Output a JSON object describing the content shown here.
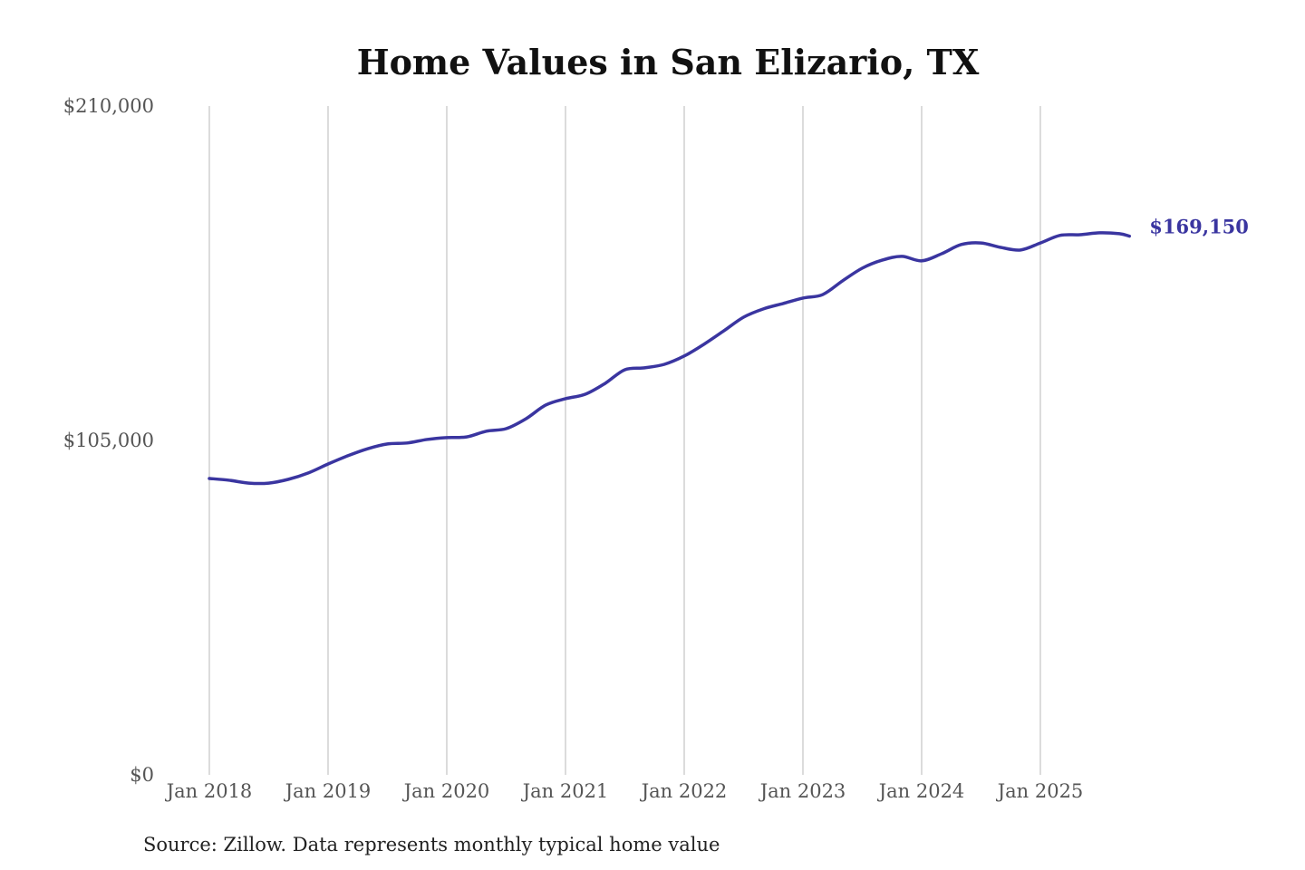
{
  "chart_data": {
    "type": "line",
    "title": "Home Values in San Elizario, TX",
    "source": "Source: Zillow. Data represents monthly typical home value",
    "xlabel": "",
    "ylabel": "",
    "ylim": [
      0,
      210000
    ],
    "y_ticks": [
      {
        "value": 0,
        "label": "$0"
      },
      {
        "value": 105000,
        "label": "$105,000"
      },
      {
        "value": 210000,
        "label": "$210,000"
      }
    ],
    "x_ticks": [
      {
        "value": "2018-01",
        "label": "Jan 2018"
      },
      {
        "value": "2019-01",
        "label": "Jan 2019"
      },
      {
        "value": "2020-01",
        "label": "Jan 2020"
      },
      {
        "value": "2021-01",
        "label": "Jan 2021"
      },
      {
        "value": "2022-01",
        "label": "Jan 2022"
      },
      {
        "value": "2023-01",
        "label": "Jan 2023"
      },
      {
        "value": "2024-01",
        "label": "Jan 2024"
      },
      {
        "value": "2025-01",
        "label": "Jan 2025"
      }
    ],
    "grid": "vertical",
    "line_color": "#3a35a0",
    "end_label": "$169,150",
    "series": [
      {
        "x": [
          "2018-01",
          "2018-03",
          "2018-05",
          "2018-07",
          "2018-09",
          "2018-11",
          "2019-01",
          "2019-03",
          "2019-05",
          "2019-07",
          "2019-09",
          "2019-11",
          "2020-01",
          "2020-03",
          "2020-05",
          "2020-07",
          "2020-09",
          "2020-11",
          "2021-01",
          "2021-03",
          "2021-05",
          "2021-07",
          "2021-09",
          "2021-11",
          "2022-01",
          "2022-03",
          "2022-05",
          "2022-07",
          "2022-09",
          "2022-11",
          "2023-01",
          "2023-03",
          "2023-05",
          "2023-07",
          "2023-09",
          "2023-11",
          "2024-01",
          "2024-03",
          "2024-05",
          "2024-07",
          "2024-09",
          "2024-11",
          "2025-01",
          "2025-03",
          "2025-05",
          "2025-07",
          "2025-09",
          "2025-10"
        ],
        "values": [
          93060,
          92500,
          91600,
          91600,
          92800,
          94800,
          97600,
          100200,
          102400,
          103900,
          104200,
          105300,
          105900,
          106100,
          107900,
          108700,
          111800,
          116100,
          118100,
          119500,
          122900,
          127200,
          127800,
          128900,
          131500,
          135200,
          139400,
          143700,
          146300,
          148000,
          149700,
          150800,
          155100,
          159100,
          161600,
          162800,
          161400,
          163600,
          166500,
          167000,
          165600,
          164800,
          167000,
          169400,
          169600,
          170200,
          169900,
          169150
        ]
      }
    ]
  }
}
